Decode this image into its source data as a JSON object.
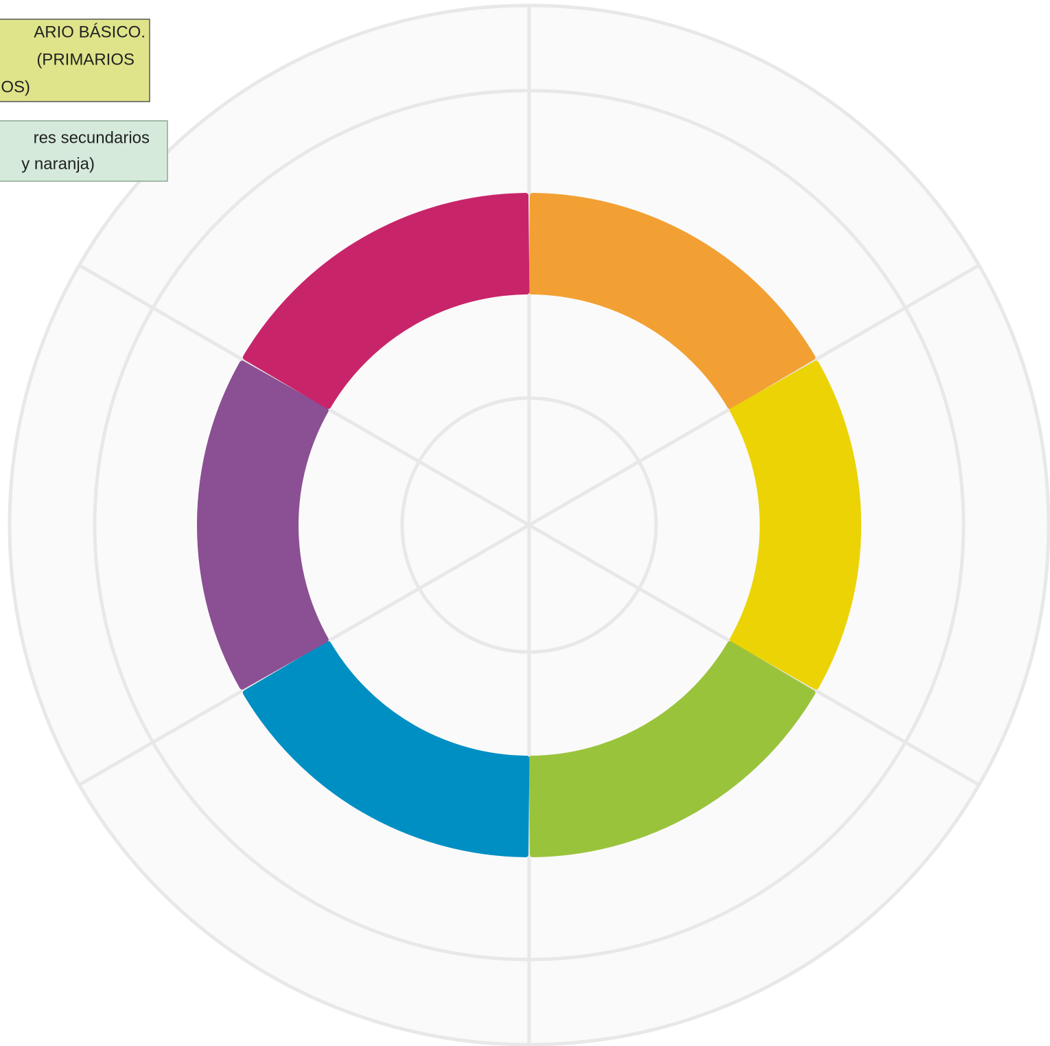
{
  "notes": [
    {
      "lines": [
        "ARIO BÁSICO.",
        "(PRIMARIOS",
        "OS)"
      ]
    },
    {
      "lines": [
        "res secundarios",
        "y naranja)"
      ]
    }
  ]
}
